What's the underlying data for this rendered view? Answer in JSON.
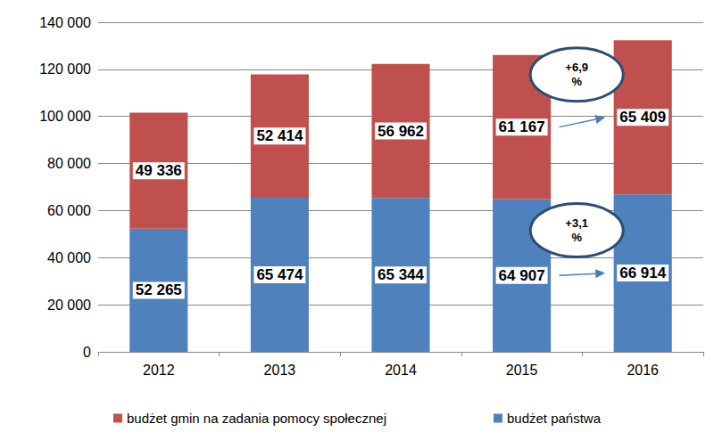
{
  "chart_data": {
    "type": "bar",
    "stacked": true,
    "data_labels": true,
    "grid": true,
    "legend": "bottom",
    "categories": [
      "2012",
      "2013",
      "2014",
      "2015",
      "2016"
    ],
    "series": [
      {
        "name": "budżet państwa",
        "color": "#4f81bd",
        "values": [
          52265,
          65474,
          65344,
          64907,
          66914
        ],
        "value_labels": [
          "52 265",
          "65 474",
          "65 344",
          "64 907",
          "66 914"
        ]
      },
      {
        "name": "budżet gmin na zadania pomocy społecznej",
        "color": "#c0504d",
        "values": [
          49336,
          52414,
          56962,
          61167,
          65409
        ],
        "value_labels": [
          "49 336",
          "52 414",
          "56 962",
          "61 167",
          "65 409"
        ]
      }
    ],
    "annotations": [
      {
        "text": "+3,1 %",
        "series": "budżet państwa"
      },
      {
        "text": "+6,9 %",
        "series": "budżet gmin na zadania pomocy społecznej"
      }
    ],
    "ylim": [
      0,
      140000
    ],
    "yticks": [
      0,
      {
        "value": 20000,
        "label": "20 000"
      },
      {
        "value": 40000,
        "label": "40 000"
      },
      {
        "value": 60000,
        "label": "60 000"
      },
      {
        "value": 80000,
        "label": "80 000"
      },
      {
        "value": 100000,
        "label": "100 000"
      },
      {
        "value": 120000,
        "label": "120 000"
      },
      {
        "value": 140000,
        "label": "140 000"
      }
    ]
  }
}
